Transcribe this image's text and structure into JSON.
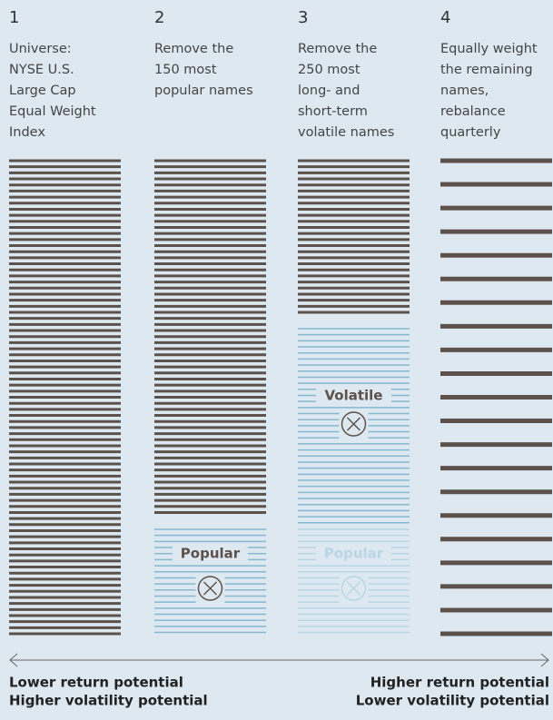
{
  "steps": [
    {
      "number": 1,
      "description": [
        "Universe:",
        "NYSE U.S.",
        "Large Cap",
        "Equal Weight",
        "Index"
      ],
      "tags": []
    },
    {
      "number": 2,
      "description": [
        "Remove the",
        "150 most",
        "popular names"
      ],
      "tags": [
        "Popular"
      ]
    },
    {
      "number": 3,
      "description": [
        "Remove the",
        "250 most",
        "long- and",
        "short-term",
        "volatile names"
      ],
      "tags": [
        "Volatile",
        "Popular"
      ]
    },
    {
      "number": 4,
      "description": [
        "Equally weight",
        "the remaining",
        "names,",
        "rebalance",
        "quarterly"
      ],
      "tags": []
    }
  ],
  "footer": {
    "left": [
      "Lower return potential",
      "Higher volatility potential"
    ],
    "right": [
      "Higher return potential",
      "Lower volatility potential"
    ]
  }
}
